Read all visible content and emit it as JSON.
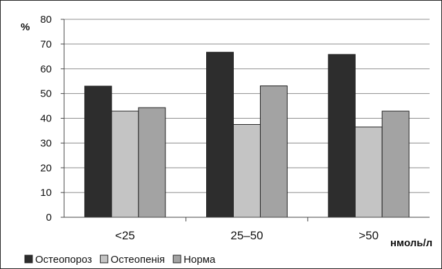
{
  "chart_data": {
    "type": "bar",
    "ylabel": "%",
    "xunit": "нмоль/л",
    "ylim": [
      0,
      80
    ],
    "yticks": [
      0,
      10,
      20,
      30,
      40,
      50,
      60,
      70,
      80
    ],
    "grid": true,
    "legend": "bottom-left",
    "categories": [
      "<25",
      "25–50",
      ">50"
    ],
    "series": [
      {
        "name": "Остеопороз",
        "color": "#2d2d2d",
        "values": [
          53,
          66.7,
          65.8
        ]
      },
      {
        "name": "Остеопенія",
        "color": "#c4c4c4",
        "values": [
          42.9,
          37.5,
          36.5
        ]
      },
      {
        "name": "Норма",
        "color": "#a3a3a3",
        "values": [
          44.3,
          53.1,
          42.9
        ]
      }
    ]
  }
}
